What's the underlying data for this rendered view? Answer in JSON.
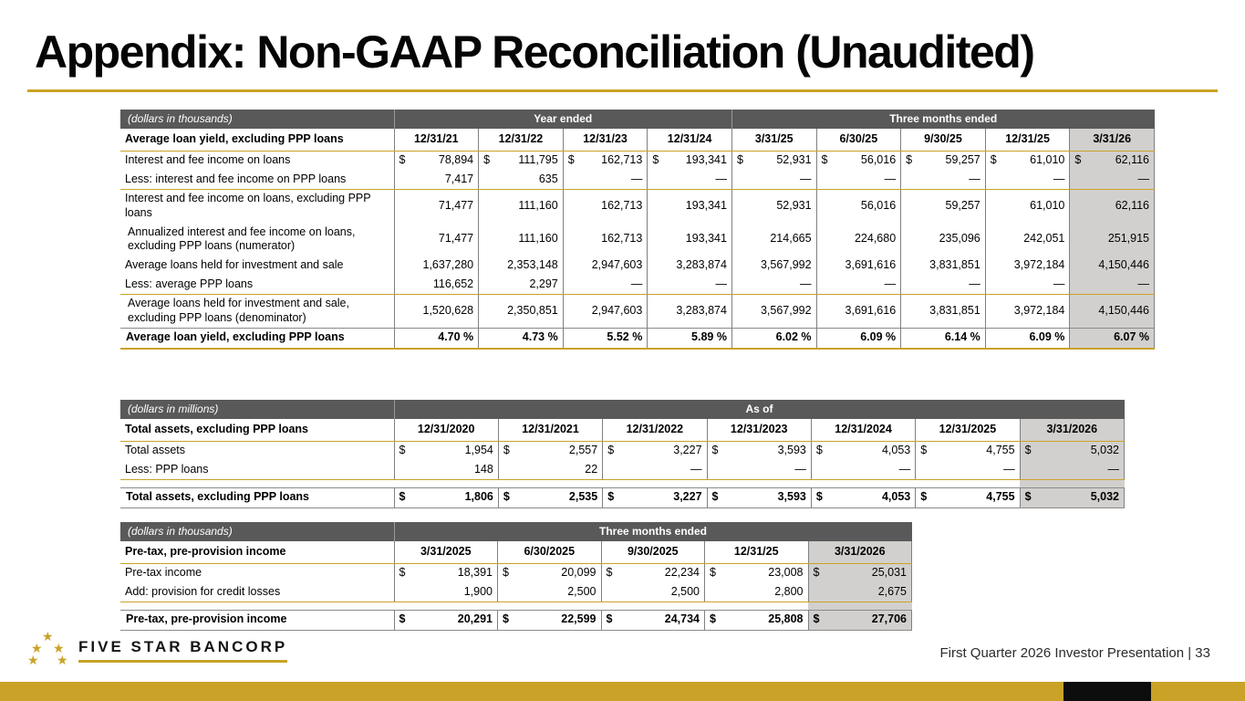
{
  "slide": {
    "title": "Appendix: Non-GAAP Reconciliation (Unaudited)",
    "brand_name": "FIVE STAR BANCORP",
    "footer_right": "First Quarter 2026 Investor Presentation  |  33",
    "star_icon": "★"
  },
  "colors": {
    "gold": "#C9A227",
    "header_gray": "#595959",
    "highlight_gray": "#D2D0CE",
    "text": "#000000"
  },
  "tables": [
    {
      "name": "average-loan-yield-table",
      "units": "(dollars in thousands)",
      "groups": [
        {
          "label": "Year ended",
          "span": 4
        },
        {
          "label": "Three months ended",
          "span": 5
        }
      ],
      "header_label": "Average loan yield, excluding PPP loans",
      "columns": [
        "12/31/21",
        "12/31/22",
        "12/31/23",
        "12/31/24",
        "3/31/25",
        "6/30/25",
        "9/30/25",
        "12/31/25",
        "3/31/26"
      ],
      "label_width": 300,
      "highlight_last": true,
      "rows": [
        {
          "label": "Interest and fee income on loans",
          "dollar": true,
          "values": [
            "78,894",
            "111,795",
            "162,713",
            "193,341",
            "52,931",
            "56,016",
            "59,257",
            "61,010",
            "62,116"
          ]
        },
        {
          "label": "Less: interest and fee income on PPP loans",
          "cls": "rule-below",
          "values": [
            "7,417",
            "635",
            "—",
            "—",
            "—",
            "—",
            "—",
            "—",
            "—"
          ]
        },
        {
          "label": "Interest and fee income on loans, excluding PPP loans",
          "values": [
            "71,477",
            "111,160",
            "162,713",
            "193,341",
            "52,931",
            "56,016",
            "59,257",
            "61,010",
            "62,116"
          ]
        },
        {
          "label": "Annualized interest and fee income on loans, excluding PPP loans (numerator)",
          "flush": true,
          "values": [
            "71,477",
            "111,160",
            "162,713",
            "193,341",
            "214,665",
            "224,680",
            "235,096",
            "242,051",
            "251,915"
          ]
        },
        {
          "label": "Average loans held for investment and sale",
          "values": [
            "1,637,280",
            "2,353,148",
            "2,947,603",
            "3,283,874",
            "3,567,992",
            "3,691,616",
            "3,831,851",
            "3,972,184",
            "4,150,446"
          ]
        },
        {
          "label": "Less: average PPP loans",
          "cls": "rule-below",
          "values": [
            "116,652",
            "2,297",
            "—",
            "—",
            "—",
            "—",
            "—",
            "—",
            "—"
          ]
        },
        {
          "label": "Average loans held for investment and sale, excluding PPP loans (denominator)",
          "flush": true,
          "values": [
            "1,520,628",
            "2,350,851",
            "2,947,603",
            "3,283,874",
            "3,567,992",
            "3,691,616",
            "3,831,851",
            "3,972,184",
            "4,150,446"
          ]
        },
        {
          "label": "Average loan yield, excluding PPP loans",
          "cls": "total gold-bottom",
          "bold": true,
          "values": [
            "4.70 %",
            "4.73 %",
            "5.52 %",
            "5.89 %",
            "6.02 %",
            "6.09 %",
            "6.14 %",
            "6.09 %",
            "6.07 %"
          ]
        }
      ]
    },
    {
      "name": "total-assets-table",
      "units": "(dollars in millions)",
      "groups": [
        {
          "label": "As of",
          "span": 7
        }
      ],
      "header_label": "Total assets, excluding PPP loans",
      "columns": [
        "12/31/2020",
        "12/31/2021",
        "12/31/2022",
        "12/31/2023",
        "12/31/2024",
        "12/31/2025",
        "3/31/2026"
      ],
      "label_width": 300,
      "highlight_last": true,
      "rows": [
        {
          "label": "Total assets",
          "dollar": true,
          "values": [
            "1,954",
            "2,557",
            "3,227",
            "3,593",
            "4,053",
            "4,755",
            "5,032"
          ]
        },
        {
          "label": "Less: PPP loans",
          "cls": "rule-below",
          "values": [
            "148",
            "22",
            "—",
            "—",
            "—",
            "—",
            "—"
          ]
        },
        {
          "spacer": true
        },
        {
          "label": "Total assets, excluding PPP loans",
          "cls": "total",
          "bold": true,
          "dollar": true,
          "values": [
            "1,806",
            "2,535",
            "3,227",
            "3,593",
            "4,053",
            "4,755",
            "5,032"
          ]
        }
      ]
    },
    {
      "name": "pre-tax-pre-provision-table",
      "units": "(dollars in thousands)",
      "groups": [
        {
          "label": "Three months ended",
          "span": 5
        }
      ],
      "header_label": "Pre-tax, pre-provision income",
      "columns": [
        "3/31/2025",
        "6/30/2025",
        "9/30/2025",
        "12/31/25",
        "3/31/2026"
      ],
      "label_width": 300,
      "highlight_last": true,
      "rows": [
        {
          "label": "Pre-tax income",
          "dollar": true,
          "values": [
            "18,391",
            "20,099",
            "22,234",
            "23,008",
            "25,031"
          ]
        },
        {
          "label": "Add: provision for credit losses",
          "cls": "rule-below",
          "values": [
            "1,900",
            "2,500",
            "2,500",
            "2,800",
            "2,675"
          ]
        },
        {
          "spacer": true
        },
        {
          "label": "Pre-tax, pre-provision income",
          "cls": "total",
          "bold": true,
          "dollar": true,
          "values": [
            "20,291",
            "22,599",
            "24,734",
            "25,808",
            "27,706"
          ]
        }
      ]
    }
  ]
}
